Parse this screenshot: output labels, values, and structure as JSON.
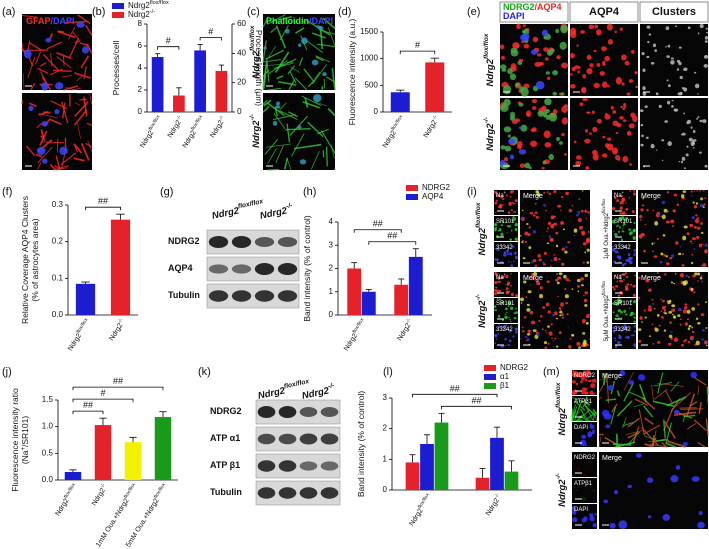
{
  "labels": {
    "a": "(a)",
    "b": "(b)",
    "c": "(c)",
    "d": "(d)",
    "e": "(e)",
    "f": "(f)",
    "g": "(g)",
    "h": "(h)",
    "i": "(i)",
    "j": "(j)",
    "k": "(k)",
    "l": "(l)",
    "m": "(m)"
  },
  "panels": {
    "a": {
      "stain": [
        "GFAP",
        "/DAPI"
      ]
    },
    "c": {
      "stain": [
        "Phalloidin",
        "/DAPI"
      ],
      "rows": [
        "Ndrg2flox/flox",
        "Ndrg2-/-"
      ]
    },
    "e": {
      "stain": [
        "NDRG2",
        "/AQP4",
        "DAPI"
      ],
      "columns": [
        "AQP4",
        "Clusters"
      ],
      "rows": [
        "Ndrg2flox/flox",
        "Ndrg2-/-"
      ]
    },
    "g": {
      "columns": [
        "Ndrg2flox/flox",
        "Ndrg2-/-"
      ],
      "rows": [
        "NDRG2",
        "AQP4",
        "Tubulin"
      ]
    },
    "i": {
      "rows": [
        "Ndrg2flox/flox",
        "Ndrg2-/-"
      ],
      "channels": [
        "Na+",
        "SR101",
        "33342"
      ],
      "merge": "Merge",
      "conditions": [
        "1μM Oua.+Ndrg2flox/flox",
        "5μM Oua.+Ndrg2flox/flox"
      ]
    },
    "k": {
      "columns": [
        "Ndrg2flox/flox",
        "Ndrg2-/-"
      ],
      "rows": [
        "NDRG2",
        "ATP α1",
        "ATP β1",
        "Tubulin"
      ]
    },
    "m": {
      "rows": [
        "Ndrg2flox/flox",
        "Ndrg2-/-"
      ],
      "channels": [
        "NDRG2",
        "ATPβ1",
        "DAPI"
      ],
      "merge": "Merge"
    }
  },
  "chart_data": [
    {
      "type": "bar",
      "categories": [
        "Ndrg2flox/flox",
        "Ndrg2-/-",
        "Ndrg2flox/flox",
        "Ndrg2-/-"
      ],
      "values": [
        5.0,
        1.5,
        42,
        28
      ],
      "errors": [
        0.3,
        0.7,
        4,
        4
      ],
      "colors": [
        "#1c1cd0",
        "#e5222a",
        "#1c1cd0",
        "#e5222a"
      ],
      "axis": [
        "y",
        "y",
        "y2",
        "y2"
      ],
      "legend": [
        {
          "name": "Ndrg2flox/flox",
          "color": "#1c1cd0"
        },
        {
          "name": "Ndrg2-/-",
          "color": "#e5222a"
        }
      ],
      "ylabel": "Processes/cell",
      "y2label": "Process length (μm)",
      "ylim": [
        0,
        8
      ],
      "yticks": [
        0,
        2,
        4,
        6,
        8
      ],
      "y2lim": [
        0,
        60
      ],
      "y2ticks": [
        0,
        20,
        40,
        60
      ],
      "annotations": [
        {
          "text": "#",
          "between": [
            0,
            1
          ]
        },
        {
          "text": "#",
          "between": [
            2,
            3
          ]
        }
      ]
    },
    {
      "type": "bar",
      "categories": [
        "Ndrg2flox/flox",
        "Ndrg2-/-"
      ],
      "values": [
        370,
        930
      ],
      "errors": [
        40,
        80
      ],
      "colors": [
        "#1c1cd0",
        "#e5222a"
      ],
      "ylabel": "Fluorescence intensity (a.u.)",
      "ylim": [
        0,
        1500
      ],
      "yticks": [
        0,
        500,
        1000,
        1500
      ],
      "annotations": [
        {
          "text": "#",
          "between": [
            0,
            1
          ]
        }
      ]
    },
    {
      "type": "bar",
      "categories": [
        "Ndrg2flox/flox",
        "Ndrg2-/-"
      ],
      "values": [
        0.085,
        0.26
      ],
      "errors": [
        0.005,
        0.015
      ],
      "colors": [
        "#1c1cd0",
        "#e5222a"
      ],
      "ylabel": [
        "Relative Coverage AQP4 Clusters",
        "(% of astrocytes area)"
      ],
      "ylim": [
        0,
        0.3
      ],
      "yticks": [
        {
          "value": 0,
          "label": "0.0"
        },
        0.1,
        0.2,
        0.3
      ],
      "annotations": [
        {
          "text": "##",
          "between": [
            0,
            1
          ]
        }
      ]
    },
    {
      "type": "bar",
      "categories": [
        "Ndrg2flox/flox",
        "Ndrg2-/-"
      ],
      "series": [
        {
          "name": "NDRG2",
          "color": "#e5222a",
          "values": [
            2.0,
            1.3
          ],
          "errors": [
            0.25,
            0.25
          ]
        },
        {
          "name": "AQP4",
          "color": "#1c1cd0",
          "values": [
            1.0,
            2.5
          ],
          "errors": [
            0.1,
            0.35
          ]
        }
      ],
      "ylabel": "Band intensity (% of control)",
      "ylim": [
        0,
        4
      ],
      "yticks": [
        0,
        1,
        2,
        3,
        4
      ],
      "annotations": [
        {
          "text": "##",
          "between": [
            1,
            3
          ]
        },
        {
          "text": "##",
          "between": [
            0,
            2
          ]
        }
      ]
    },
    {
      "type": "bar",
      "categories": [
        "Ndrg2flox/flox",
        "Ndrg2-/-",
        "1mM Oua.+Ndrg2flox/flox",
        "5mM Oua.+Ndrg2flox/flox"
      ],
      "values": [
        0.15,
        1.03,
        0.71,
        1.18
      ],
      "errors": [
        0.04,
        0.13,
        0.09,
        0.1
      ],
      "colors": [
        "#1c1cd0",
        "#e5222a",
        "#f2f200",
        "#1a9a1a"
      ],
      "ylabel": [
        "Fluorescence intensity ratio",
        "(Na+/SR101)"
      ],
      "ylim": [
        0,
        1.5
      ],
      "yticks": [
        {
          "value": 0,
          "label": "0.0"
        },
        0.5,
        {
          "value": 1,
          "label": "1.0"
        },
        1.5
      ],
      "annotations": [
        {
          "text": "##",
          "between": [
            0,
            1
          ]
        },
        {
          "text": "#",
          "between": [
            0,
            2
          ]
        },
        {
          "text": "##",
          "between": [
            0,
            3
          ]
        }
      ]
    },
    {
      "type": "bar",
      "categories": [
        "Ndrg2flox/flox",
        "Ndrg2-/-"
      ],
      "series": [
        {
          "name": "NDRG2",
          "color": "#e5222a",
          "values": [
            0.9,
            0.4
          ],
          "errors": [
            0.25,
            0.3
          ]
        },
        {
          "name": "α1",
          "color": "#1c1cd0",
          "values": [
            1.5,
            1.7
          ],
          "errors": [
            0.3,
            0.35
          ]
        },
        {
          "name": "β1",
          "color": "#1a9a1a",
          "values": [
            2.2,
            0.6
          ],
          "errors": [
            0.3,
            0.35
          ]
        }
      ],
      "ylabel": "Band intensity (% of control)",
      "ylim": [
        0,
        3
      ],
      "yticks": [
        0,
        1,
        2,
        3
      ],
      "annotations": [
        {
          "text": "##",
          "between": [
            2,
            5
          ]
        },
        {
          "text": "##",
          "between": [
            0,
            4
          ]
        }
      ]
    }
  ]
}
